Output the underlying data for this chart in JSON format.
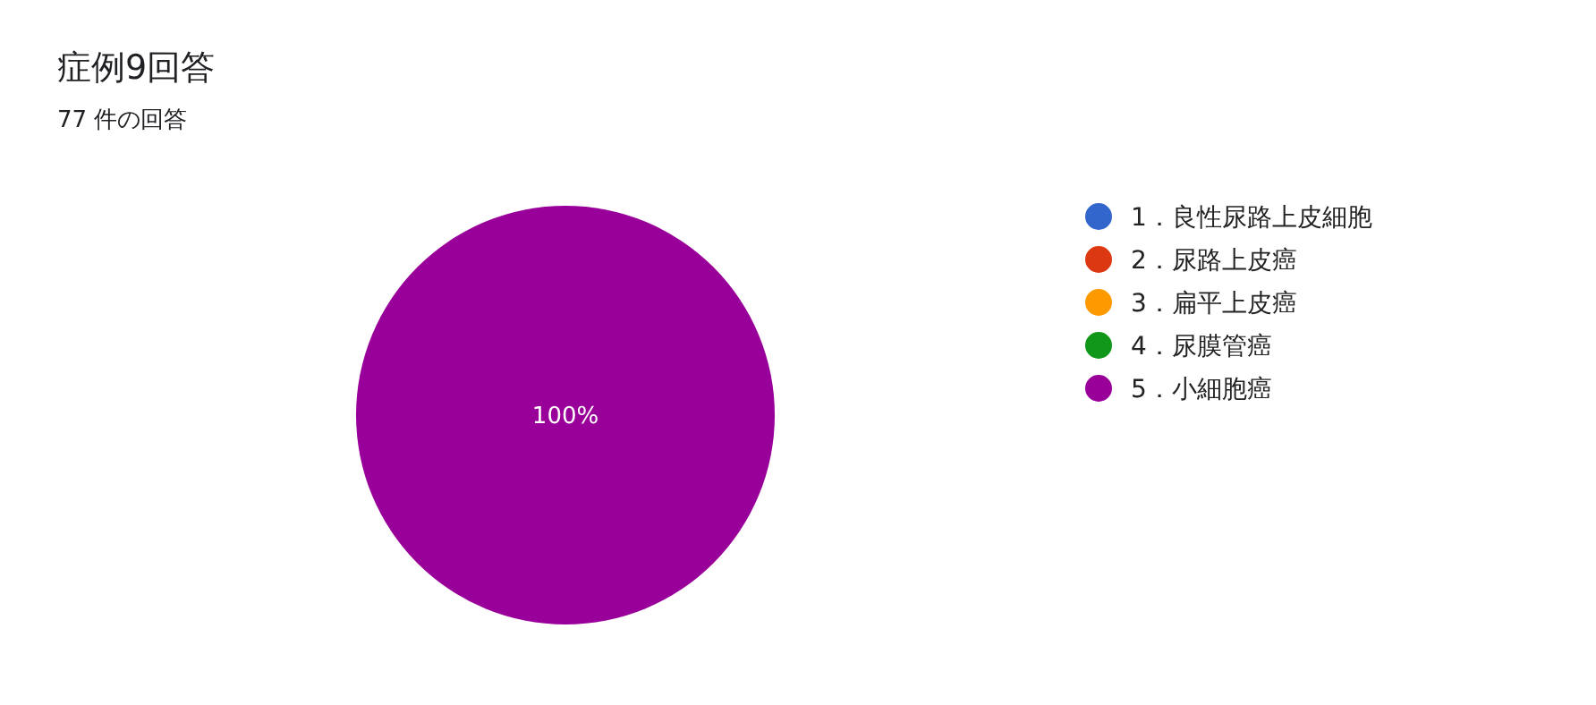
{
  "chart_data": {
    "type": "pie",
    "title": "症例9回答",
    "subtitle": "77 件の回答",
    "categories": [
      "1．良性尿路上皮細胞",
      "2．尿路上皮癌",
      "3．扁平上皮癌",
      "4．尿膜管癌",
      "5．小細胞癌"
    ],
    "values": [
      0,
      0,
      0,
      0,
      100
    ],
    "colors": [
      "#3366cc",
      "#dc3912",
      "#ff9900",
      "#109618",
      "#990099"
    ],
    "value_labels": [
      null,
      null,
      null,
      null,
      "100%"
    ],
    "legend": "right"
  }
}
